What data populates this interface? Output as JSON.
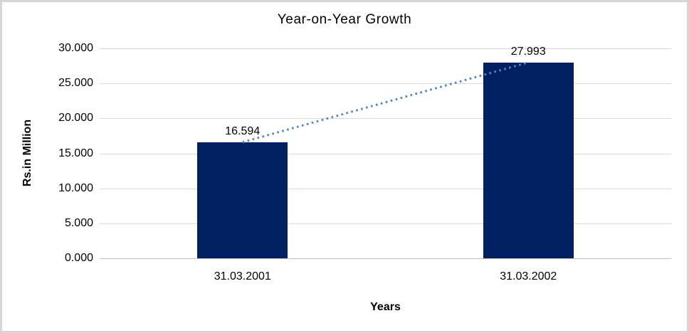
{
  "frame": {
    "border_color": "#d6d6d6",
    "background_color": "#ffffff"
  },
  "chart_data": {
    "type": "bar",
    "title": "Year-on-Year Growth",
    "xlabel": "Years",
    "ylabel": "Rs.in Million",
    "categories": [
      "31.03.2001",
      "31.03.2002"
    ],
    "values": [
      16.594,
      27.993
    ],
    "data_labels": [
      "16.594",
      "27.993"
    ],
    "ylim": [
      0,
      30
    ],
    "ytick_step": 5,
    "yticks": [
      "0.000",
      "5.000",
      "10.000",
      "15.000",
      "20.000",
      "25.000",
      "30.000"
    ],
    "grid": true,
    "legend": "none",
    "bar_color": "#002060",
    "gridline_color": "#d9d9d9",
    "axis_line_color": "#c0c0c0",
    "text_color": "#000000",
    "trendline": {
      "style": "dotted",
      "color": "#4f87c9"
    }
  }
}
